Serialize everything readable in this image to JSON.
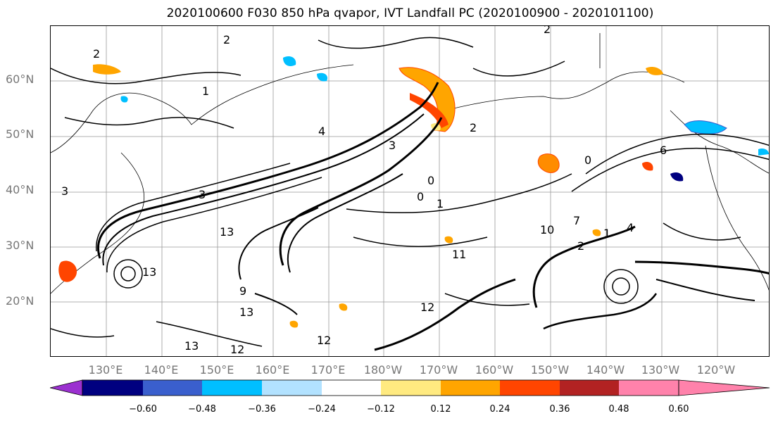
{
  "title": "2020100600 F030 850 hPa qvapor, IVT Landfall PC (2020100900 - 2020101100)",
  "lat_labels": [
    "60°N",
    "50°N",
    "40°N",
    "30°N",
    "20°N"
  ],
  "lon_labels": [
    "130°E",
    "140°E",
    "150°E",
    "160°E",
    "170°E",
    "180°W",
    "170°W",
    "160°W",
    "150°W",
    "140°W",
    "130°W",
    "120°W"
  ],
  "contour_labels": [
    "2",
    "2",
    "1",
    "2",
    "3",
    "4",
    "3",
    "0",
    "1",
    "13",
    "13",
    "13",
    "13",
    "12",
    "12",
    "10",
    "11",
    "12",
    "4",
    "2",
    "0",
    "7",
    "1",
    "2",
    "3",
    "6",
    "9",
    "0"
  ],
  "colorbar": {
    "colors": [
      "#9b30d0",
      "#000080",
      "#3a5fcd",
      "#00bfff",
      "#b2e2ff",
      "#ffffff",
      "#ffea80",
      "#ffa500",
      "#ff4500",
      "#b22222",
      "#ff82ab"
    ],
    "tick_labels": [
      "−0.60",
      "−0.48",
      "−0.36",
      "−0.24",
      "−0.12",
      "0.12",
      "0.24",
      "0.36",
      "0.48",
      "0.60"
    ]
  }
}
